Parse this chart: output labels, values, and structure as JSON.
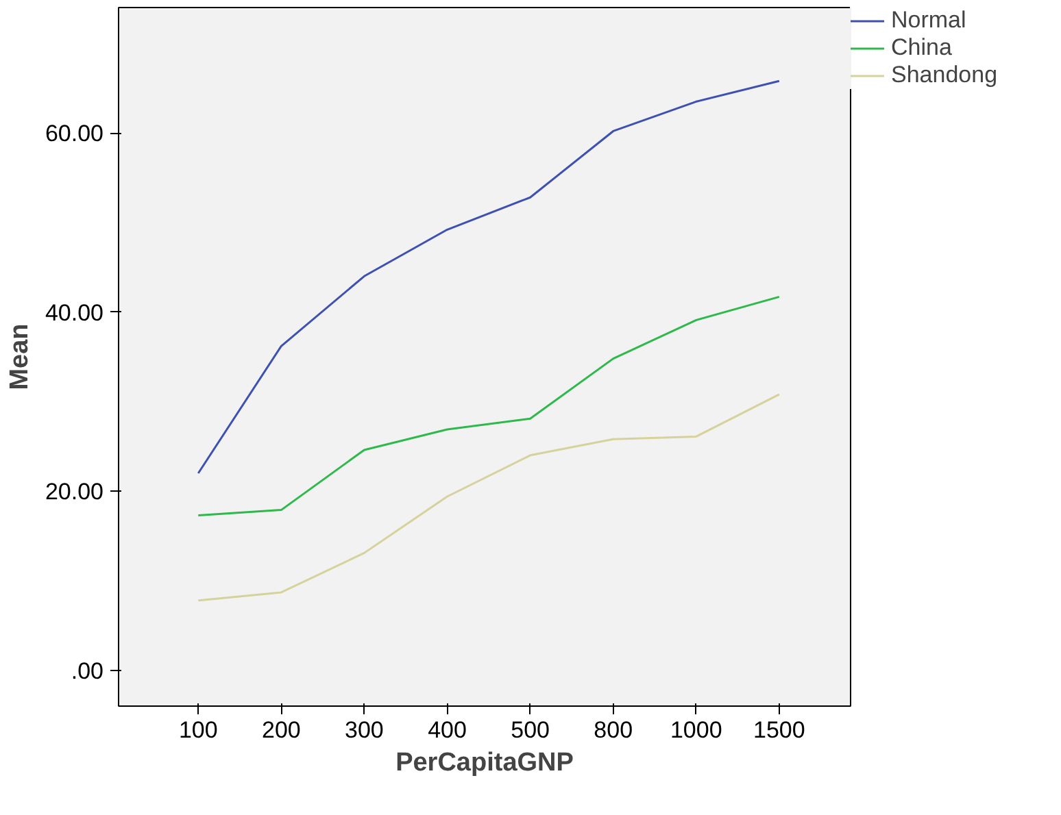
{
  "chart_data": {
    "type": "line",
    "xlabel": "PerCapitaGNP",
    "ylabel": "Mean",
    "categories": [
      "100",
      "200",
      "300",
      "400",
      "500",
      "800",
      "1000",
      "1500"
    ],
    "series": [
      {
        "name": "Normal",
        "color": "#3f51b0",
        "values": [
          22.0,
          36.2,
          44.0,
          49.2,
          52.8,
          60.2,
          63.5,
          65.8
        ]
      },
      {
        "name": "China",
        "color": "#2fb84b",
        "values": [
          17.3,
          17.9,
          24.6,
          26.9,
          28.1,
          34.8,
          39.1,
          41.7
        ]
      },
      {
        "name": "Shandong",
        "color": "#d6d29c",
        "values": [
          7.8,
          8.7,
          13.1,
          19.4,
          24.0,
          25.8,
          26.1,
          30.8
        ]
      }
    ],
    "ylim": [
      -4,
      74
    ],
    "yticks": [
      {
        "value": 0,
        "label": ".00"
      },
      {
        "value": 20,
        "label": "20.00"
      },
      {
        "value": 40,
        "label": "40.00"
      },
      {
        "value": 60,
        "label": "60.00"
      }
    ],
    "grid": false,
    "legend": "top right",
    "marker": "none",
    "line_style": "solid"
  }
}
